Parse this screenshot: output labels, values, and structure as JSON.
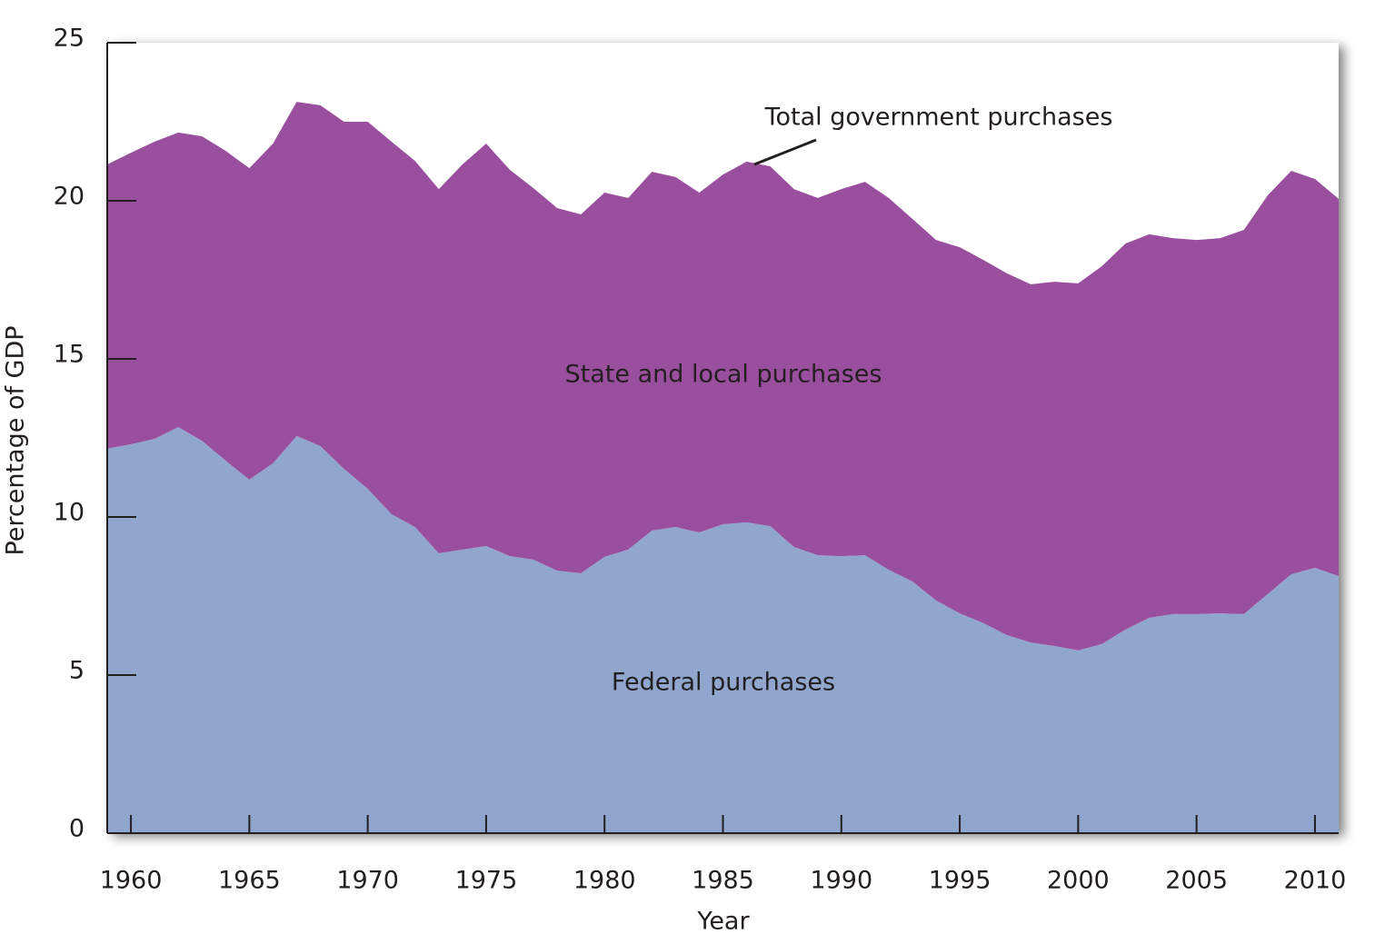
{
  "chart_data": {
    "type": "stacked-area",
    "x_label": "Year",
    "y_label": "Percentage of GDP",
    "annotation": "Total government purchases",
    "x": [
      1959,
      1960,
      1961,
      1962,
      1963,
      1964,
      1965,
      1966,
      1967,
      1968,
      1969,
      1970,
      1971,
      1972,
      1973,
      1974,
      1975,
      1976,
      1977,
      1978,
      1979,
      1980,
      1981,
      1982,
      1983,
      1984,
      1985,
      1986,
      1987,
      1988,
      1989,
      1990,
      1991,
      1992,
      1993,
      1994,
      1995,
      1996,
      1997,
      1998,
      1999,
      2000,
      2001,
      2002,
      2003,
      2004,
      2005,
      2006,
      2007,
      2008,
      2009,
      2010,
      2011
    ],
    "series": [
      {
        "name": "Federal purchases",
        "color": "#91a6cf",
        "values": [
          12.16,
          12.3,
          12.47,
          12.84,
          12.41,
          11.78,
          11.18,
          11.7,
          12.56,
          12.24,
          11.52,
          10.89,
          10.09,
          9.68,
          8.85,
          8.97,
          9.08,
          8.76,
          8.65,
          8.3,
          8.22,
          8.74,
          8.97,
          9.57,
          9.68,
          9.51,
          9.77,
          9.83,
          9.71,
          9.05,
          8.79,
          8.76,
          8.79,
          8.33,
          7.96,
          7.36,
          6.95,
          6.64,
          6.26,
          6.03,
          5.92,
          5.78,
          5.98,
          6.44,
          6.81,
          6.93,
          6.93,
          6.95,
          6.93,
          7.56,
          8.19,
          8.39,
          8.13
        ]
      },
      {
        "name": "State and local purchases",
        "color": "#9a4f9e",
        "values": [
          8.99,
          9.22,
          9.4,
          9.32,
          9.63,
          9.8,
          9.85,
          10.11,
          10.57,
          10.78,
          10.98,
          11.61,
          11.78,
          11.58,
          11.52,
          12.18,
          12.73,
          12.22,
          11.75,
          11.47,
          11.35,
          11.52,
          11.12,
          11.35,
          11.07,
          10.75,
          11.06,
          11.41,
          11.38,
          11.32,
          11.3,
          11.61,
          11.81,
          11.76,
          11.47,
          11.4,
          11.58,
          11.49,
          11.44,
          11.33,
          11.52,
          11.61,
          11.95,
          12.21,
          12.13,
          11.89,
          11.83,
          11.87,
          12.15,
          12.61,
          12.76,
          12.3,
          11.93
        ]
      }
    ],
    "xlim": [
      1959,
      2011
    ],
    "xticks": [
      1960,
      1965,
      1970,
      1975,
      1980,
      1985,
      1990,
      1995,
      2000,
      2005,
      2010
    ],
    "ylim": [
      0,
      25
    ],
    "yticks": [
      0,
      5,
      10,
      15,
      20,
      25
    ]
  }
}
